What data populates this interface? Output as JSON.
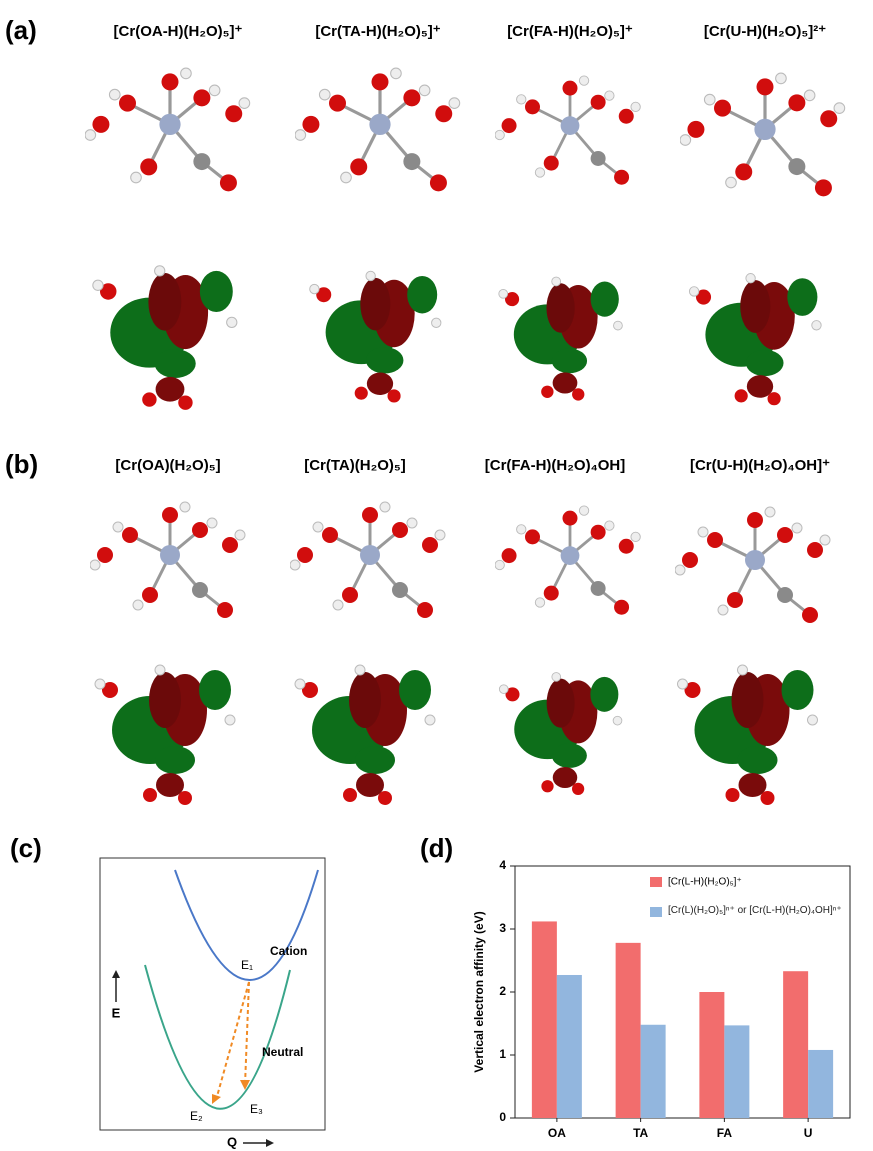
{
  "panel_a": {
    "label": "(a)",
    "titles": [
      "[Cr(OA-H)(H₂O)₅]⁺",
      "[Cr(TA-H)(H₂O)₅]⁺",
      "[Cr(FA-H)(H₂O)₅]⁺",
      "[Cr(U-H)(H₂O)₅]²⁺"
    ]
  },
  "panel_b": {
    "label": "(b)",
    "titles": [
      "[Cr(OA)(H₂O)₅]",
      "[Cr(TA)(H₂O)₅]",
      "[Cr(FA-H)(H₂O)₄OH]",
      "[Cr(U-H)(H₂O)₄OH]⁺"
    ]
  },
  "panel_c": {
    "label": "(c)",
    "y_axis": "E",
    "x_axis": "Q",
    "cation": "Cation",
    "neutral": "Neutral",
    "e1": "E₁",
    "e2": "E₂",
    "e3": "E₃"
  },
  "panel_d": {
    "label": "(d)",
    "chart_data": {
      "type": "bar",
      "y_label": "Vertical electron affinity (eV)",
      "categories": [
        "OA",
        "TA",
        "FA",
        "U"
      ],
      "series": [
        {
          "name": "[Cr(L-H)(H₂O)₅]⁺",
          "color": "#f26d6d",
          "values": [
            3.12,
            2.78,
            2.0,
            2.33
          ]
        },
        {
          "name": "[Cr(L)(H₂O)₅]ⁿ⁺ or [Cr(L-H)(H₂O)₄OH]ⁿ⁺",
          "color": "#92b6de",
          "values": [
            2.27,
            1.48,
            1.47,
            1.08
          ]
        }
      ],
      "ylim": [
        0,
        4
      ],
      "yticks": [
        0,
        1,
        2,
        3,
        4
      ],
      "legend": "upper right"
    }
  }
}
